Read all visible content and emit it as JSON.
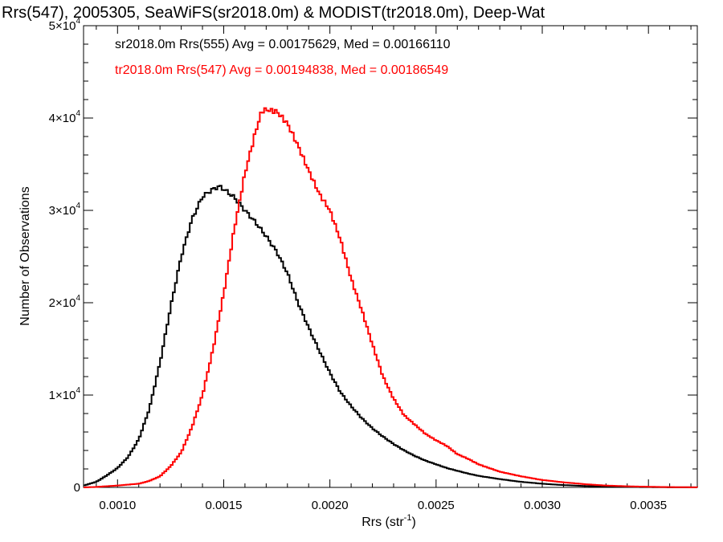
{
  "chart_data": {
    "type": "line",
    "title": "Rrs(547), 2005305, SeaWiFS(sr2018.0m) & MODIST(tr2018.0m), Deep-Wat",
    "xlabel": "Rrs (str",
    "xlabel_exp": "-1",
    "xlabel_close": ")",
    "ylabel": "Number of Observations",
    "xlim": [
      0.00084,
      0.00373
    ],
    "ylim": [
      0,
      50000
    ],
    "x_ticks": [
      {
        "value": 0.001,
        "label": "0.0010"
      },
      {
        "value": 0.0015,
        "label": "0.0015"
      },
      {
        "value": 0.002,
        "label": "0.0020"
      },
      {
        "value": 0.0025,
        "label": "0.0025"
      },
      {
        "value": 0.003,
        "label": "0.0030"
      },
      {
        "value": 0.0035,
        "label": "0.0035"
      }
    ],
    "y_ticks": [
      {
        "value": 0,
        "mant": "0",
        "exp": ""
      },
      {
        "value": 10000,
        "mant": "1×10",
        "exp": "4"
      },
      {
        "value": 20000,
        "mant": "2×10",
        "exp": "4"
      },
      {
        "value": 30000,
        "mant": "3×10",
        "exp": "4"
      },
      {
        "value": 40000,
        "mant": "4×10",
        "exp": "4"
      },
      {
        "value": 50000,
        "mant": "5×10",
        "exp": "4"
      }
    ],
    "grid": false,
    "legend_placement": "top-left",
    "series": [
      {
        "name": "sr2018.0m Rrs(555) Avg = 0.00175629, Med = 0.00166110",
        "color": "#000000",
        "x": [
          0.00084,
          0.0009,
          0.00095,
          0.001,
          0.00105,
          0.0011,
          0.00115,
          0.0012,
          0.00125,
          0.0013,
          0.00135,
          0.0014,
          0.00145,
          0.00148,
          0.0015,
          0.00155,
          0.0016,
          0.00165,
          0.0017,
          0.00175,
          0.0018,
          0.00185,
          0.0019,
          0.00195,
          0.002,
          0.00205,
          0.0021,
          0.00215,
          0.0022,
          0.00225,
          0.0023,
          0.00235,
          0.0024,
          0.00245,
          0.0025,
          0.00255,
          0.0026,
          0.00265,
          0.0027,
          0.0028,
          0.0029,
          0.003,
          0.0031,
          0.0032,
          0.0033,
          0.0034,
          0.0035,
          0.0036,
          0.00373
        ],
        "y": [
          200,
          600,
          1300,
          2100,
          3300,
          5200,
          8500,
          13500,
          19500,
          25000,
          29000,
          31500,
          32300,
          32600,
          32300,
          31400,
          30000,
          28700,
          27200,
          25500,
          23200,
          20000,
          17300,
          14800,
          12400,
          10300,
          8800,
          7500,
          6400,
          5500,
          4700,
          4000,
          3400,
          2900,
          2500,
          2100,
          1800,
          1500,
          1250,
          900,
          600,
          400,
          250,
          150,
          80,
          50,
          30,
          15,
          5
        ]
      },
      {
        "name": "tr2018.0m Rrs(547) Avg = 0.00194838, Med = 0.00186549",
        "color": "#ff0000",
        "x": [
          0.00084,
          0.0009,
          0.001,
          0.0011,
          0.00115,
          0.0012,
          0.00125,
          0.0013,
          0.00135,
          0.0014,
          0.00145,
          0.0015,
          0.00155,
          0.0016,
          0.00165,
          0.00168,
          0.0017,
          0.00175,
          0.0018,
          0.00185,
          0.0019,
          0.00195,
          0.002,
          0.00205,
          0.0021,
          0.00215,
          0.0022,
          0.00225,
          0.0023,
          0.00235,
          0.0024,
          0.00245,
          0.0025,
          0.00255,
          0.0026,
          0.00265,
          0.0027,
          0.0028,
          0.0029,
          0.003,
          0.0031,
          0.0032,
          0.0033,
          0.0034,
          0.0035,
          0.0036,
          0.00373
        ],
        "y": [
          0,
          50,
          200,
          400,
          700,
          1200,
          2300,
          3800,
          6500,
          10000,
          15000,
          21000,
          28000,
          34000,
          38500,
          40800,
          40900,
          40700,
          39400,
          37000,
          34300,
          31800,
          30000,
          26800,
          22600,
          19200,
          15500,
          12000,
          9600,
          7800,
          6800,
          5800,
          5100,
          4500,
          3600,
          3100,
          2500,
          1700,
          1200,
          800,
          550,
          350,
          200,
          120,
          70,
          30,
          10
        ]
      }
    ]
  }
}
